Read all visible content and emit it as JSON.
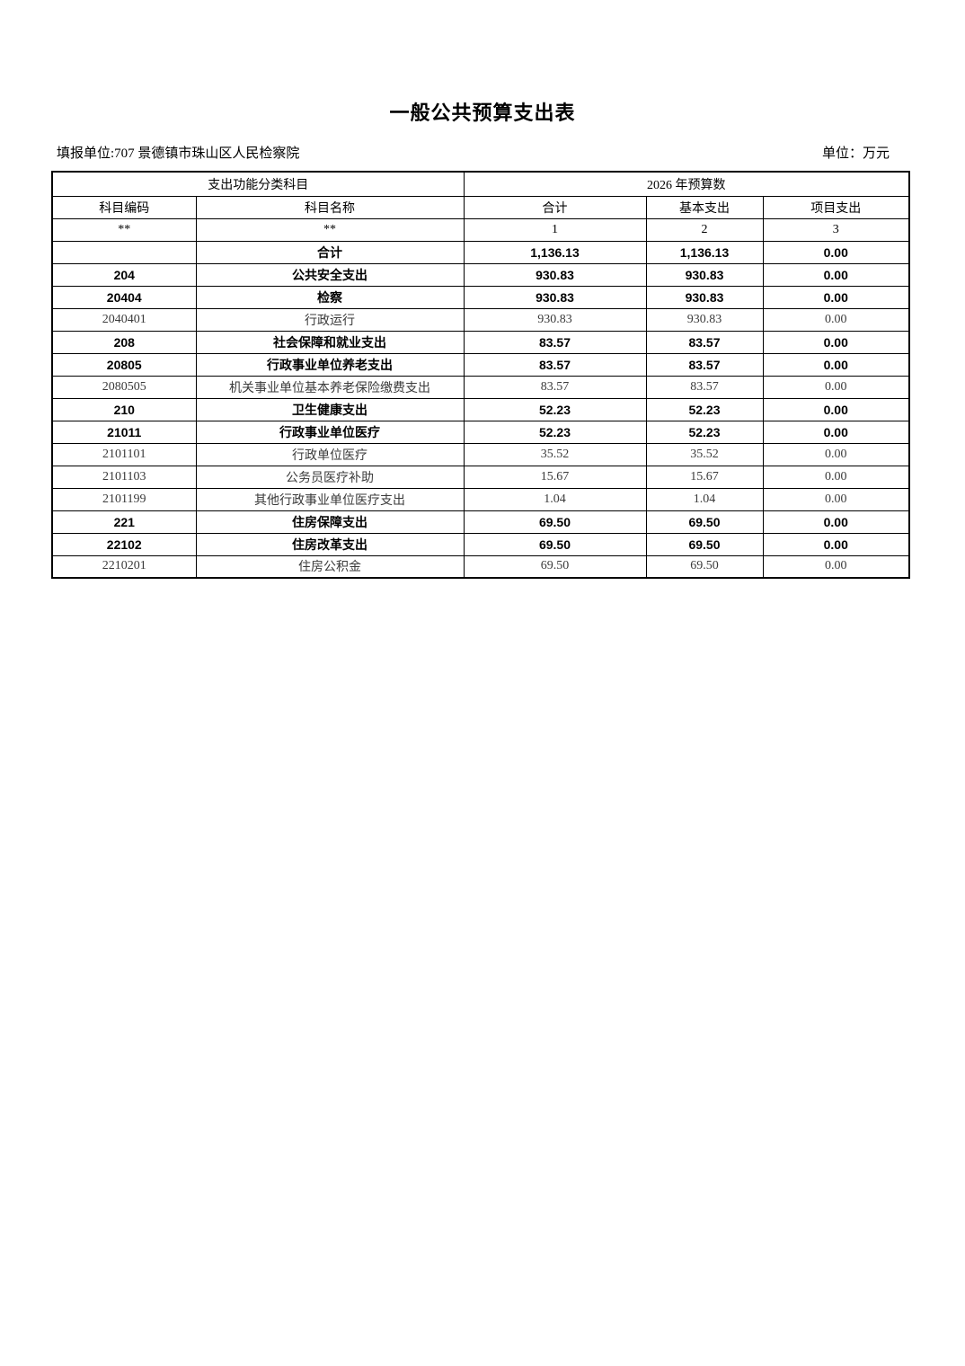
{
  "page": {
    "title": "一般公共预算支出表",
    "reporting_unit": "填报单位:707 景德镇市珠山区人民检察院",
    "unit_note": "单位：万元"
  },
  "table": {
    "group_headers": {
      "function_class": "支出功能分类科目",
      "budget_year": "2026 年预算数"
    },
    "columns": {
      "code": "科目编码",
      "name": "科目名称",
      "total": "合计",
      "basic": "基本支出",
      "project": "项目支出"
    },
    "index_row": {
      "code": "**",
      "name": "**",
      "total": "1",
      "basic": "2",
      "project": "3"
    },
    "rows": [
      {
        "code": "",
        "name": "合计",
        "total": "1,136.13",
        "basic": "1,136.13",
        "project": "0.00",
        "bold": true
      },
      {
        "code": "204",
        "name": "公共安全支出",
        "total": "930.83",
        "basic": "930.83",
        "project": "0.00",
        "bold": true
      },
      {
        "code": "20404",
        "name": "检察",
        "total": "930.83",
        "basic": "930.83",
        "project": "0.00",
        "bold": true
      },
      {
        "code": "2040401",
        "name": "行政运行",
        "total": "930.83",
        "basic": "930.83",
        "project": "0.00",
        "bold": false
      },
      {
        "code": "208",
        "name": "社会保障和就业支出",
        "total": "83.57",
        "basic": "83.57",
        "project": "0.00",
        "bold": true
      },
      {
        "code": "20805",
        "name": "行政事业单位养老支出",
        "total": "83.57",
        "basic": "83.57",
        "project": "0.00",
        "bold": true
      },
      {
        "code": "2080505",
        "name": "机关事业单位基本养老保险缴费支出",
        "total": "83.57",
        "basic": "83.57",
        "project": "0.00",
        "bold": false
      },
      {
        "code": "210",
        "name": "卫生健康支出",
        "total": "52.23",
        "basic": "52.23",
        "project": "0.00",
        "bold": true
      },
      {
        "code": "21011",
        "name": "行政事业单位医疗",
        "total": "52.23",
        "basic": "52.23",
        "project": "0.00",
        "bold": true
      },
      {
        "code": "2101101",
        "name": "行政单位医疗",
        "total": "35.52",
        "basic": "35.52",
        "project": "0.00",
        "bold": false
      },
      {
        "code": "2101103",
        "name": "公务员医疗补助",
        "total": "15.67",
        "basic": "15.67",
        "project": "0.00",
        "bold": false
      },
      {
        "code": "2101199",
        "name": "其他行政事业单位医疗支出",
        "total": "1.04",
        "basic": "1.04",
        "project": "0.00",
        "bold": false
      },
      {
        "code": "221",
        "name": "住房保障支出",
        "total": "69.50",
        "basic": "69.50",
        "project": "0.00",
        "bold": true
      },
      {
        "code": "22102",
        "name": "住房改革支出",
        "total": "69.50",
        "basic": "69.50",
        "project": "0.00",
        "bold": true
      },
      {
        "code": "2210201",
        "name": "住房公积金",
        "total": "69.50",
        "basic": "69.50",
        "project": "0.00",
        "bold": false
      }
    ]
  }
}
